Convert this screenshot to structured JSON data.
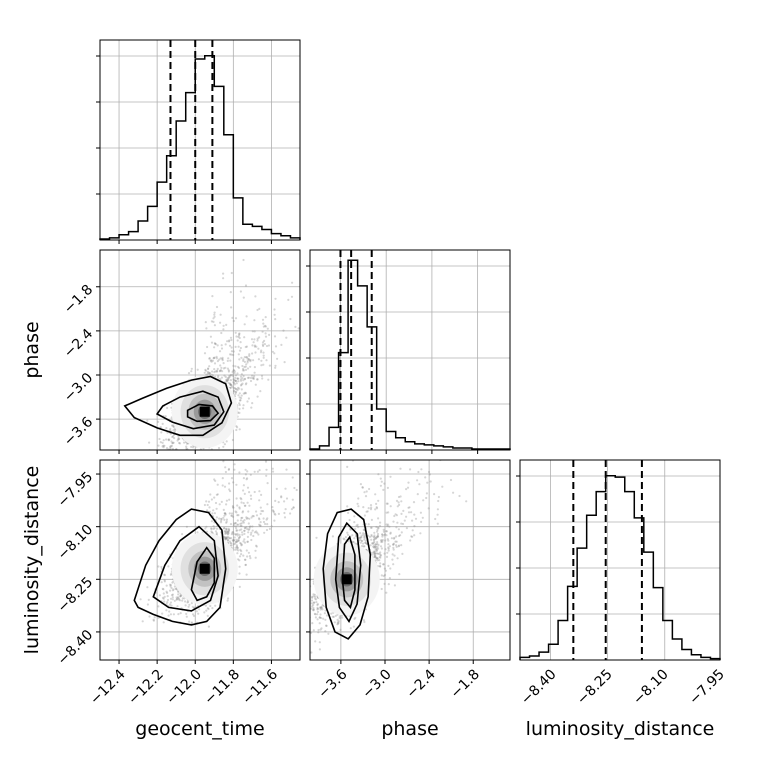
{
  "chart_data": {
    "type": "corner",
    "parameters": [
      "geocent_time",
      "phase",
      "luminosity_distance"
    ],
    "grid": true,
    "panels": [
      {
        "type": "histogram",
        "row": 0,
        "col": 0,
        "parameter": "geocent_time",
        "bin_edges": [
          -12.5,
          -12.45,
          -12.4,
          -12.35,
          -12.3,
          -12.25,
          -12.2,
          -12.15,
          -12.1,
          -12.05,
          -12.0,
          -11.95,
          -11.9,
          -11.85,
          -11.8,
          -11.75,
          -11.7,
          -11.65,
          -11.6,
          -11.55,
          -11.5,
          -11.45
        ],
        "counts": [
          1,
          2,
          5,
          8,
          18,
          32,
          55,
          80,
          113,
          140,
          172,
          175,
          146,
          100,
          40,
          15,
          13,
          10,
          6,
          4,
          2
        ],
        "quantiles": [
          -12.13,
          -12.0,
          -11.91
        ],
        "ylim": [
          0,
          190
        ]
      },
      {
        "type": "scatter",
        "row": 1,
        "col": 0,
        "x": "geocent_time",
        "y": "phase",
        "xlim": [
          -12.5,
          -11.45
        ],
        "ylim": [
          -4.02,
          -1.3
        ],
        "peak": [
          -11.95,
          -3.5
        ],
        "contours": [
          [
            [
              -12.37,
              -3.42
            ],
            [
              -12.28,
              -3.32
            ],
            [
              -12.15,
              -3.18
            ],
            [
              -12.02,
              -3.07
            ],
            [
              -11.92,
              -3.02
            ],
            [
              -11.84,
              -3.12
            ],
            [
              -11.81,
              -3.38
            ],
            [
              -11.86,
              -3.65
            ],
            [
              -11.96,
              -3.82
            ],
            [
              -12.08,
              -3.82
            ],
            [
              -12.2,
              -3.72
            ],
            [
              -12.32,
              -3.58
            ]
          ],
          [
            [
              -12.17,
              -3.42
            ],
            [
              -12.08,
              -3.3
            ],
            [
              -11.96,
              -3.22
            ],
            [
              -11.88,
              -3.3
            ],
            [
              -11.85,
              -3.5
            ],
            [
              -11.9,
              -3.68
            ],
            [
              -12.01,
              -3.73
            ],
            [
              -12.12,
              -3.64
            ],
            [
              -12.2,
              -3.53
            ]
          ],
          [
            [
              -12.04,
              -3.48
            ],
            [
              -11.98,
              -3.4
            ],
            [
              -11.91,
              -3.42
            ],
            [
              -11.88,
              -3.52
            ],
            [
              -11.92,
              -3.62
            ],
            [
              -11.99,
              -3.63
            ],
            [
              -12.04,
              -3.57
            ]
          ]
        ]
      },
      {
        "type": "histogram",
        "row": 1,
        "col": 1,
        "parameter": "phase",
        "bin_edges": [
          -4.0,
          -3.875,
          -3.75,
          -3.625,
          -3.5,
          -3.375,
          -3.25,
          -3.125,
          -3.0,
          -2.875,
          -2.75,
          -2.625,
          -2.5,
          -2.375,
          -2.25,
          -2.125,
          -2.0,
          -1.875,
          -1.75,
          -1.625,
          -1.5,
          -1.375
        ],
        "counts": [
          1,
          4,
          22,
          95,
          185,
          160,
          120,
          40,
          18,
          12,
          8,
          6,
          5,
          4,
          3,
          2,
          2,
          1,
          1,
          1,
          1
        ],
        "quantiles": [
          -3.6,
          -3.46,
          -3.19
        ],
        "ylim": [
          0,
          195
        ]
      },
      {
        "type": "scatter",
        "row": 2,
        "col": 0,
        "x": "geocent_time",
        "y": "luminosity_distance",
        "xlim": [
          -12.5,
          -11.45
        ],
        "ylim": [
          -8.48,
          -7.91
        ],
        "peak": [
          -11.95,
          -8.22
        ],
        "contours": [
          [
            [
              -12.32,
              -8.31
            ],
            [
              -12.26,
              -8.21
            ],
            [
              -12.19,
              -8.14
            ],
            [
              -12.1,
              -8.08
            ],
            [
              -12.02,
              -8.05
            ],
            [
              -11.93,
              -8.06
            ],
            [
              -11.86,
              -8.11
            ],
            [
              -11.84,
              -8.22
            ],
            [
              -11.87,
              -8.33
            ],
            [
              -11.94,
              -8.37
            ],
            [
              -12.02,
              -8.38
            ],
            [
              -12.12,
              -8.37
            ],
            [
              -12.22,
              -8.35
            ],
            [
              -12.3,
              -8.33
            ]
          ],
          [
            [
              -12.22,
              -8.3
            ],
            [
              -12.16,
              -8.21
            ],
            [
              -12.08,
              -8.14
            ],
            [
              -11.98,
              -8.1
            ],
            [
              -11.9,
              -8.14
            ],
            [
              -11.88,
              -8.24
            ],
            [
              -11.92,
              -8.31
            ],
            [
              -12.02,
              -8.34
            ],
            [
              -12.14,
              -8.33
            ]
          ],
          [
            [
              -12.02,
              -8.28
            ],
            [
              -11.99,
              -8.2
            ],
            [
              -11.94,
              -8.16
            ],
            [
              -11.9,
              -8.19
            ],
            [
              -11.9,
              -8.26
            ],
            [
              -11.94,
              -8.3
            ],
            [
              -11.99,
              -8.31
            ]
          ]
        ]
      },
      {
        "type": "scatter",
        "row": 2,
        "col": 1,
        "x": "phase",
        "y": "luminosity_distance",
        "xlim": [
          -4.02,
          -1.3
        ],
        "ylim": [
          -8.48,
          -7.91
        ],
        "peak": [
          -3.52,
          -8.25
        ],
        "contours": [
          [
            [
              -3.84,
              -8.22
            ],
            [
              -3.78,
              -8.12
            ],
            [
              -3.65,
              -8.06
            ],
            [
              -3.46,
              -8.05
            ],
            [
              -3.29,
              -8.08
            ],
            [
              -3.2,
              -8.18
            ],
            [
              -3.23,
              -8.3
            ],
            [
              -3.34,
              -8.38
            ],
            [
              -3.5,
              -8.42
            ],
            [
              -3.68,
              -8.4
            ],
            [
              -3.8,
              -8.33
            ]
          ],
          [
            [
              -3.67,
              -8.25
            ],
            [
              -3.63,
              -8.13
            ],
            [
              -3.52,
              -8.09
            ],
            [
              -3.38,
              -8.12
            ],
            [
              -3.33,
              -8.21
            ],
            [
              -3.38,
              -8.32
            ],
            [
              -3.49,
              -8.37
            ],
            [
              -3.62,
              -8.33
            ]
          ],
          [
            [
              -3.58,
              -8.25
            ],
            [
              -3.55,
              -8.15
            ],
            [
              -3.48,
              -8.13
            ],
            [
              -3.41,
              -8.18
            ],
            [
              -3.41,
              -8.28
            ],
            [
              -3.47,
              -8.33
            ],
            [
              -3.55,
              -8.31
            ]
          ]
        ]
      },
      {
        "type": "histogram",
        "row": 2,
        "col": 2,
        "parameter": "luminosity_distance",
        "bin_edges": [
          -8.48,
          -8.455,
          -8.43,
          -8.405,
          -8.38,
          -8.355,
          -8.33,
          -8.305,
          -8.28,
          -8.255,
          -8.23,
          -8.205,
          -8.18,
          -8.155,
          -8.13,
          -8.105,
          -8.08,
          -8.055,
          -8.03,
          -8.005,
          -7.98,
          -7.955
        ],
        "counts": [
          2,
          3,
          6,
          12,
          30,
          56,
          85,
          110,
          128,
          140,
          139,
          128,
          108,
          82,
          55,
          30,
          16,
          8,
          4,
          2,
          1
        ],
        "quantiles": [
          -8.34,
          -8.255,
          -8.16
        ],
        "ylim": [
          0,
          152
        ]
      }
    ],
    "axes": {
      "x": [
        {
          "label": "geocent_time",
          "ticks": [
            -12.4,
            -12.2,
            -12.0,
            -11.8,
            -11.6
          ],
          "tick_labels": [
            "−12.4",
            "−12.2",
            "−12.0",
            "−11.8",
            "−11.6"
          ]
        },
        {
          "label": "phase",
          "ticks": [
            -3.6,
            -3.0,
            -2.4,
            -1.8
          ],
          "tick_labels": [
            "−3.6",
            "−3.0",
            "−2.4",
            "−1.8"
          ]
        },
        {
          "label": "luminosity_distance",
          "ticks": [
            -8.4,
            -8.25,
            -8.1,
            -7.95
          ],
          "tick_labels": [
            "−8.40",
            "−8.25",
            "−8.10",
            "−7.95"
          ]
        }
      ],
      "y": [
        null,
        {
          "label": "phase",
          "ticks": [
            -3.6,
            -3.0,
            -2.4,
            -1.8
          ],
          "tick_labels": [
            "−3.6",
            "−3.0",
            "−2.4",
            "−1.8"
          ]
        },
        {
          "label": "luminosity_distance",
          "ticks": [
            -8.4,
            -8.25,
            -8.1,
            -7.95
          ],
          "tick_labels": [
            "−8.40",
            "−8.25",
            "−8.10",
            "−7.95"
          ]
        }
      ]
    }
  }
}
